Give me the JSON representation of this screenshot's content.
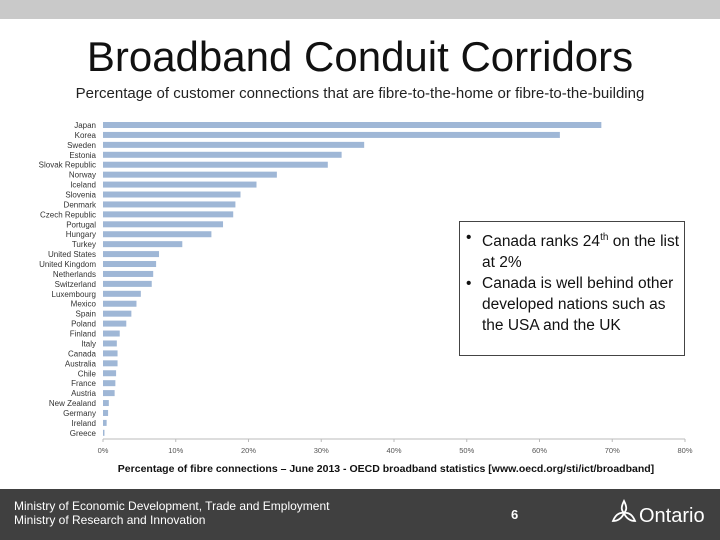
{
  "slide": {
    "title": "Broadband Conduit Corridors",
    "subtitle": "Percentage of customer connections that are fibre-to-the-home or fibre-to-the-building",
    "caption": "Percentage of fibre connections – June 2013 - OECD broadband statistics [www.oecd.org/sti/ict/broadband]",
    "callout": {
      "bullet_glyph": "•",
      "line1_pre": "Canada ranks 24",
      "line1_sup": "th",
      "line1_post": " on the list at 2%",
      "line2": "Canada is well behind other developed nations such as the USA and the UK"
    },
    "footer": {
      "ministry1": "Ministry of Economic Development, Trade and Employment",
      "ministry2": "Ministry of Research and Innovation",
      "page_number": "6",
      "logo_text": "Ontario"
    },
    "colors": {
      "bar": "#9fb7d6",
      "footer_bg": "#404040",
      "top_bar": "#c9c9c9"
    }
  },
  "chart_data": {
    "type": "bar",
    "orientation": "horizontal",
    "categories": [
      "Japan",
      "Korea",
      "Sweden",
      "Estonia",
      "Slovak Republic",
      "Norway",
      "Iceland",
      "Slovenia",
      "Denmark",
      "Czech Republic",
      "Portugal",
      "Hungary",
      "Turkey",
      "United States",
      "United Kingdom",
      "Netherlands",
      "Switzerland",
      "Luxembourg",
      "Mexico",
      "Spain",
      "Poland",
      "Finland",
      "Italy",
      "Canada",
      "Australia",
      "Chile",
      "France",
      "Austria",
      "New Zealand",
      "Germany",
      "Ireland",
      "Greece"
    ],
    "values": [
      68.5,
      62.8,
      35.9,
      32.8,
      30.9,
      23.9,
      21.1,
      18.9,
      18.2,
      17.9,
      16.5,
      14.9,
      10.9,
      7.7,
      7.3,
      6.9,
      6.7,
      5.2,
      4.6,
      3.9,
      3.2,
      2.3,
      1.9,
      2.0,
      2.0,
      1.8,
      1.7,
      1.6,
      0.8,
      0.7,
      0.5,
      0.2
    ],
    "xticks": [
      "0%",
      "10%",
      "20%",
      "30%",
      "40%",
      "50%",
      "60%",
      "70%",
      "80%"
    ],
    "xlim": [
      0,
      80
    ],
    "grid": false
  }
}
